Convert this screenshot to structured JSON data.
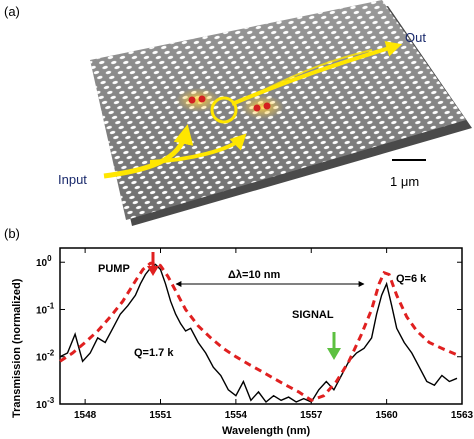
{
  "panel_a": {
    "label": "(a)",
    "input_label": "Input",
    "output_label": "Out",
    "scale_bar_label": "1 μm",
    "colors": {
      "slab": "#8c8c8c",
      "holes": "#ffffff",
      "beam": "#ffe600",
      "cavity": "#d42020"
    }
  },
  "panel_b": {
    "label": "(b)",
    "annotations": {
      "pump": "PUMP",
      "signal": "SIGNAL",
      "delta": "Δλ=10 nm",
      "q_left": "Q=1.7 k",
      "q_right": "Q=6 k"
    },
    "colors": {
      "measured": "#000000",
      "fit": "#e02020",
      "pump_arrow": "#e02020",
      "signal_arrow": "#5cc040"
    }
  },
  "chart_data": {
    "type": "line",
    "xlabel": "Wavelength (nm)",
    "ylabel": "Transmission (normalized)",
    "xlim": [
      1547,
      1563
    ],
    "ylim": [
      0.001,
      2
    ],
    "yscale": "log",
    "x_ticks": [
      1548,
      1551,
      1554,
      1557,
      1560,
      1563
    ],
    "y_ticks": [
      {
        "value": 0.001,
        "base": "10",
        "exp": "-3"
      },
      {
        "value": 0.01,
        "base": "10",
        "exp": "-2"
      },
      {
        "value": 0.1,
        "base": "10",
        "exp": "-1"
      },
      {
        "value": 1,
        "base": "10",
        "exp": "0"
      }
    ],
    "series": [
      {
        "style": "solid-black",
        "x": [
          1547.0,
          1547.3,
          1547.6,
          1547.9,
          1548.2,
          1548.5,
          1548.8,
          1549.1,
          1549.4,
          1549.7,
          1550.0,
          1550.2,
          1550.4,
          1550.6,
          1550.8,
          1551.0,
          1551.2,
          1551.4,
          1551.6,
          1551.8,
          1552.0,
          1552.2,
          1552.5,
          1552.8,
          1553.1,
          1553.4,
          1553.7,
          1554.0,
          1554.3,
          1554.6,
          1554.9,
          1555.2,
          1555.5,
          1555.8,
          1556.1,
          1556.4,
          1556.7,
          1557.0,
          1557.3,
          1557.6,
          1557.9,
          1558.2,
          1558.5,
          1558.8,
          1559.1,
          1559.4,
          1559.6,
          1559.8,
          1560.0,
          1560.2,
          1560.4,
          1560.7,
          1561.0,
          1561.3,
          1561.6,
          1561.9,
          1562.2,
          1562.5,
          1562.8
        ],
        "y": [
          0.01,
          0.012,
          0.03,
          0.008,
          0.012,
          0.025,
          0.02,
          0.04,
          0.08,
          0.12,
          0.2,
          0.35,
          0.55,
          0.75,
          0.9,
          0.7,
          0.35,
          0.15,
          0.08,
          0.05,
          0.035,
          0.04,
          0.02,
          0.012,
          0.006,
          0.004,
          0.002,
          0.0015,
          0.003,
          0.0012,
          0.0018,
          0.0011,
          0.0015,
          0.0012,
          0.0014,
          0.0011,
          0.0013,
          0.0011,
          0.002,
          0.003,
          0.002,
          0.004,
          0.008,
          0.012,
          0.015,
          0.025,
          0.08,
          0.2,
          0.35,
          0.12,
          0.04,
          0.02,
          0.012,
          0.006,
          0.003,
          0.0025,
          0.004,
          0.003,
          0.0035
        ]
      },
      {
        "style": "dashed-red",
        "x": [
          1547.0,
          1547.5,
          1548.0,
          1548.5,
          1549.0,
          1549.5,
          1550.0,
          1550.3,
          1550.6,
          1550.8,
          1551.0,
          1551.3,
          1551.6,
          1552.0,
          1552.5,
          1553.0,
          1553.5,
          1554.0,
          1554.5,
          1555.0,
          1555.5,
          1556.0,
          1556.5,
          1557.0,
          1557.5,
          1558.0,
          1558.5,
          1559.0,
          1559.4,
          1559.7,
          1559.9,
          1560.1,
          1560.4,
          1560.8,
          1561.2,
          1561.7,
          1562.2,
          1562.8
        ],
        "y": [
          0.008,
          0.012,
          0.02,
          0.035,
          0.07,
          0.15,
          0.4,
          0.7,
          0.95,
          0.98,
          0.85,
          0.5,
          0.25,
          0.1,
          0.045,
          0.025,
          0.015,
          0.01,
          0.007,
          0.005,
          0.0035,
          0.0025,
          0.0018,
          0.0012,
          0.0015,
          0.003,
          0.008,
          0.03,
          0.1,
          0.35,
          0.6,
          0.55,
          0.2,
          0.07,
          0.035,
          0.02,
          0.015,
          0.011
        ]
      }
    ]
  }
}
